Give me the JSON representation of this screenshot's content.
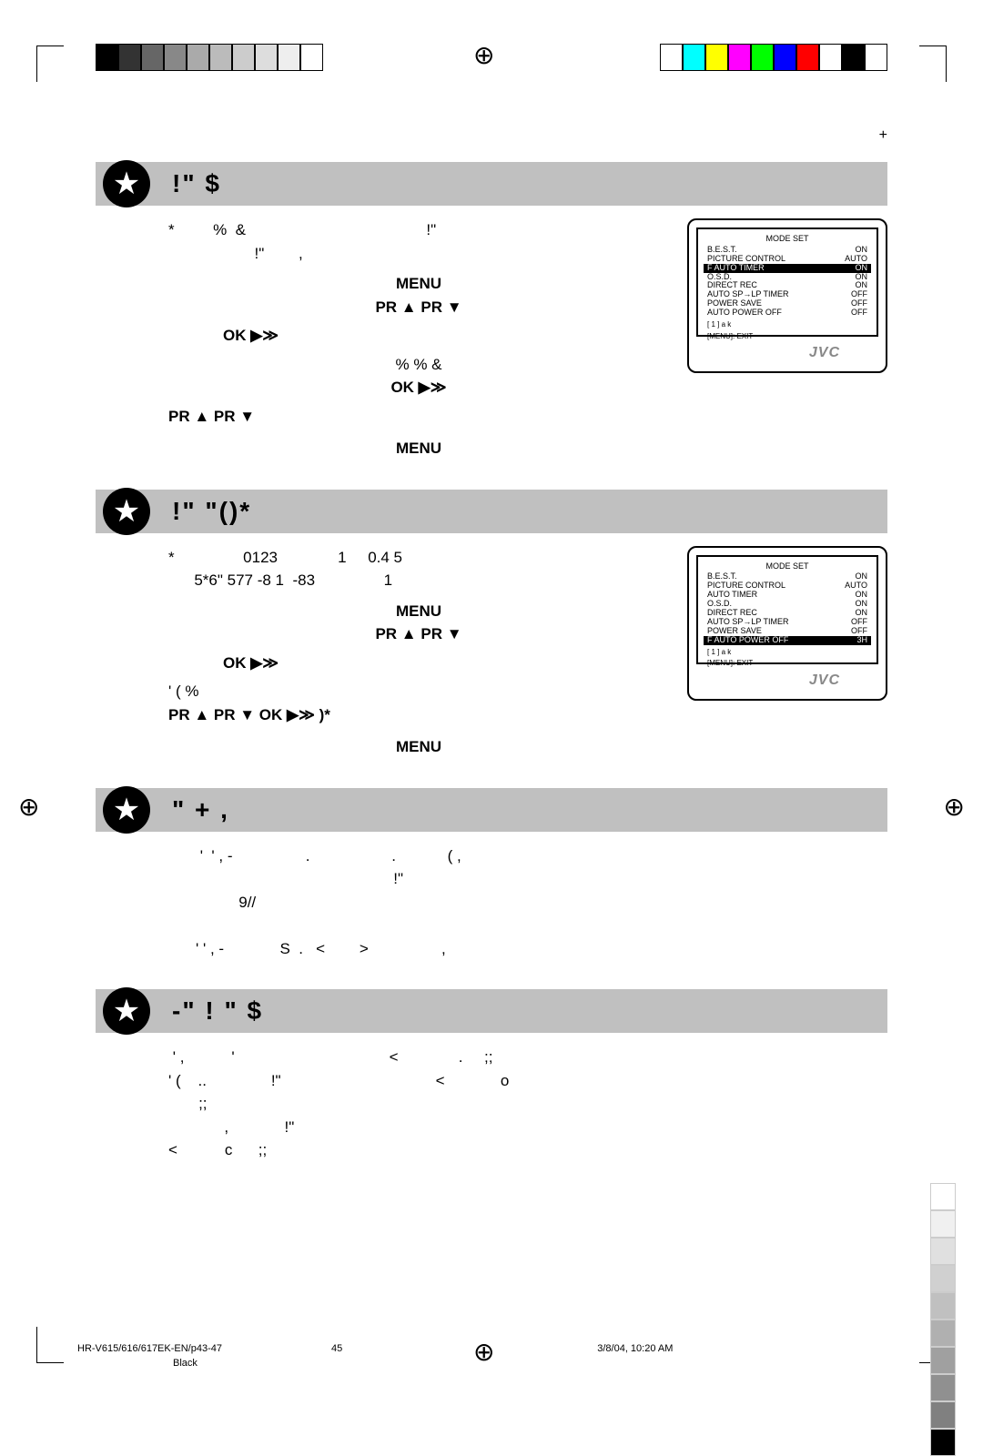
{
  "page_number_top": "+",
  "crop": {
    "top_left_colors": [
      "#000000",
      "#333333",
      "#666666",
      "#888888",
      "#aaaaaa",
      "#bbbbbb",
      "#cccccc",
      "#dddddd",
      "#eeeeee",
      "#ffffff"
    ],
    "top_right_colors": [
      "#ffffff",
      "#00ffff",
      "#ffff00",
      "#ff00ff",
      "#00ff00",
      "#0000ff",
      "#ff0000",
      "#ffffff",
      "#000000",
      "#ffffff"
    ]
  },
  "registration_mark": "⊕",
  "sections": [
    {
      "title": "!\"   $",
      "body_left": "*         %  &                                          !\"\n                    !\"        ,",
      "steps": {
        "s1a": "MENU",
        "s1b": "PR ▲       PR ▼",
        "s2": "OK            ▶≫",
        "s3a": "%    %  &",
        "s3b": "OK               ▶≫",
        "s4": "PR ▲      PR ▼",
        "s5": "MENU"
      },
      "tv": {
        "title": "MODE SET",
        "rows": [
          {
            "l": "B.E.S.T.",
            "r": "ON",
            "hl": false
          },
          {
            "l": "PICTURE CONTROL",
            "r": "AUTO",
            "hl": false
          },
          {
            "l": "F AUTO TIMER",
            "r": "ON",
            "hl": true
          },
          {
            "l": "O.S.D.",
            "r": "ON",
            "hl": false
          },
          {
            "l": "DIRECT REC",
            "r": "ON",
            "hl": false
          },
          {
            "l": "AUTO SP→LP TIMER",
            "r": "OFF",
            "hl": false
          },
          {
            "l": "POWER SAVE",
            "r": "OFF",
            "hl": false
          },
          {
            "l": "AUTO POWER OFF",
            "r": "OFF",
            "hl": false
          }
        ],
        "foot1": "[ 1  ] a  k",
        "foot2": "[MENU]: EXIT",
        "logo": "JVC"
      }
    },
    {
      "title": "!\"     \"()* ",
      "body_top": "*                0123              1     0.4 5\n      5*6\" 577 -8 1  -83                1",
      "steps": {
        "s1": "MENU",
        "s2": "PR ▲       PR ▼",
        "s3": "OK            ▶≫",
        "s4a": "' (                                      %",
        "s4b": "PR ▲       PR ▼             OK              ▶≫            )*",
        "s5": "MENU"
      },
      "tv": {
        "title": "MODE SET",
        "rows": [
          {
            "l": "B.E.S.T.",
            "r": "ON",
            "hl": false
          },
          {
            "l": "PICTURE CONTROL",
            "r": "AUTO",
            "hl": false
          },
          {
            "l": "AUTO TIMER",
            "r": "ON",
            "hl": false
          },
          {
            "l": "O.S.D.",
            "r": "ON",
            "hl": false
          },
          {
            "l": "DIRECT REC",
            "r": "ON",
            "hl": false
          },
          {
            "l": "AUTO SP→LP TIMER",
            "r": "OFF",
            "hl": false
          },
          {
            "l": "POWER SAVE",
            "r": "OFF",
            "hl": false
          },
          {
            "l": "F AUTO POWER OFF",
            "r": "3H",
            "hl": true
          }
        ],
        "foot1": "[ 1  ] a  k",
        "foot2": "[MENU]: EXIT",
        "logo": "JVC"
      }
    },
    {
      "title": "\"    +  ,",
      "body": " '  ' , -                 .                   .            ( ,\n                                              !\"\n          9//\n\n' ' , -             S  .   <        >                 ,"
    },
    {
      "title": "-\"  !  \"    $",
      "body": " ' ,           '                                    <              .     ;;\n' (    ..               !\"                                    <             o\n       ;;\n             ,             !\"\n<           c      ;;"
    }
  ],
  "footer": {
    "filename": "HR-V615/616/617EK-EN/p43-47",
    "page": "45",
    "timestamp": "3/8/04, 10:20 AM",
    "color": "Black"
  },
  "side_grays": [
    "#ffffff",
    "#f0f0f0",
    "#e0e0e0",
    "#d0d0d0",
    "#c0c0c0",
    "#b0b0b0",
    "#a0a0a0",
    "#909090",
    "#808080",
    "#000000"
  ]
}
